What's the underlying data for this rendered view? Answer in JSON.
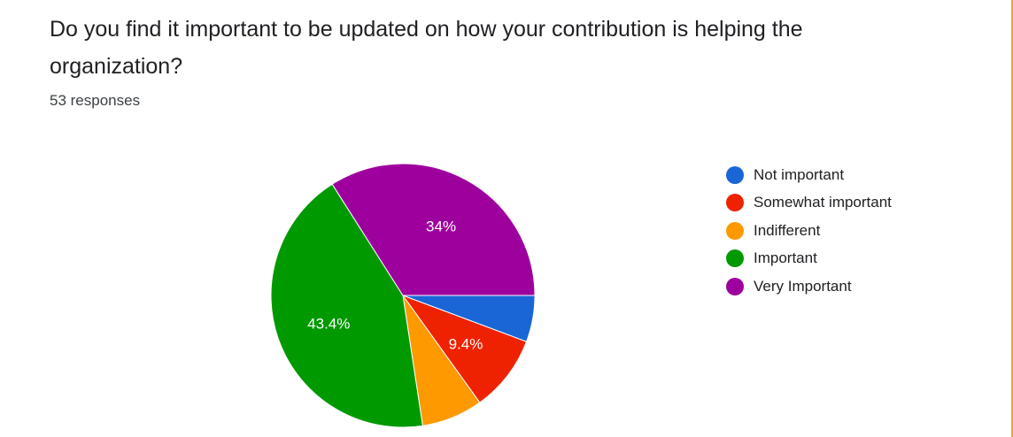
{
  "question": {
    "title": "Do you find it important to be updated on how your contribution is helping the organization?",
    "responses": "53 responses"
  },
  "colors": {
    "not_important": "#1a66d6",
    "somewhat_important": "#ee2200",
    "indifferent": "#ff9900",
    "important": "#009900",
    "very_important": "#9e009e",
    "card_border": "#f4a124"
  },
  "chart_data": {
    "type": "pie",
    "title": "Do you find it important to be updated on how your contribution is helping the organization?",
    "categories": [
      "Not important",
      "Somewhat important",
      "Indifferent",
      "Important",
      "Very Important"
    ],
    "values": [
      5.7,
      9.4,
      7.5,
      43.4,
      34
    ],
    "data_labels": [
      "",
      "9.4%",
      "",
      "43.4%",
      "34%"
    ],
    "colors": [
      "#1a66d6",
      "#ee2200",
      "#ff9900",
      "#009900",
      "#9e009e"
    ],
    "legend_position": "right"
  }
}
